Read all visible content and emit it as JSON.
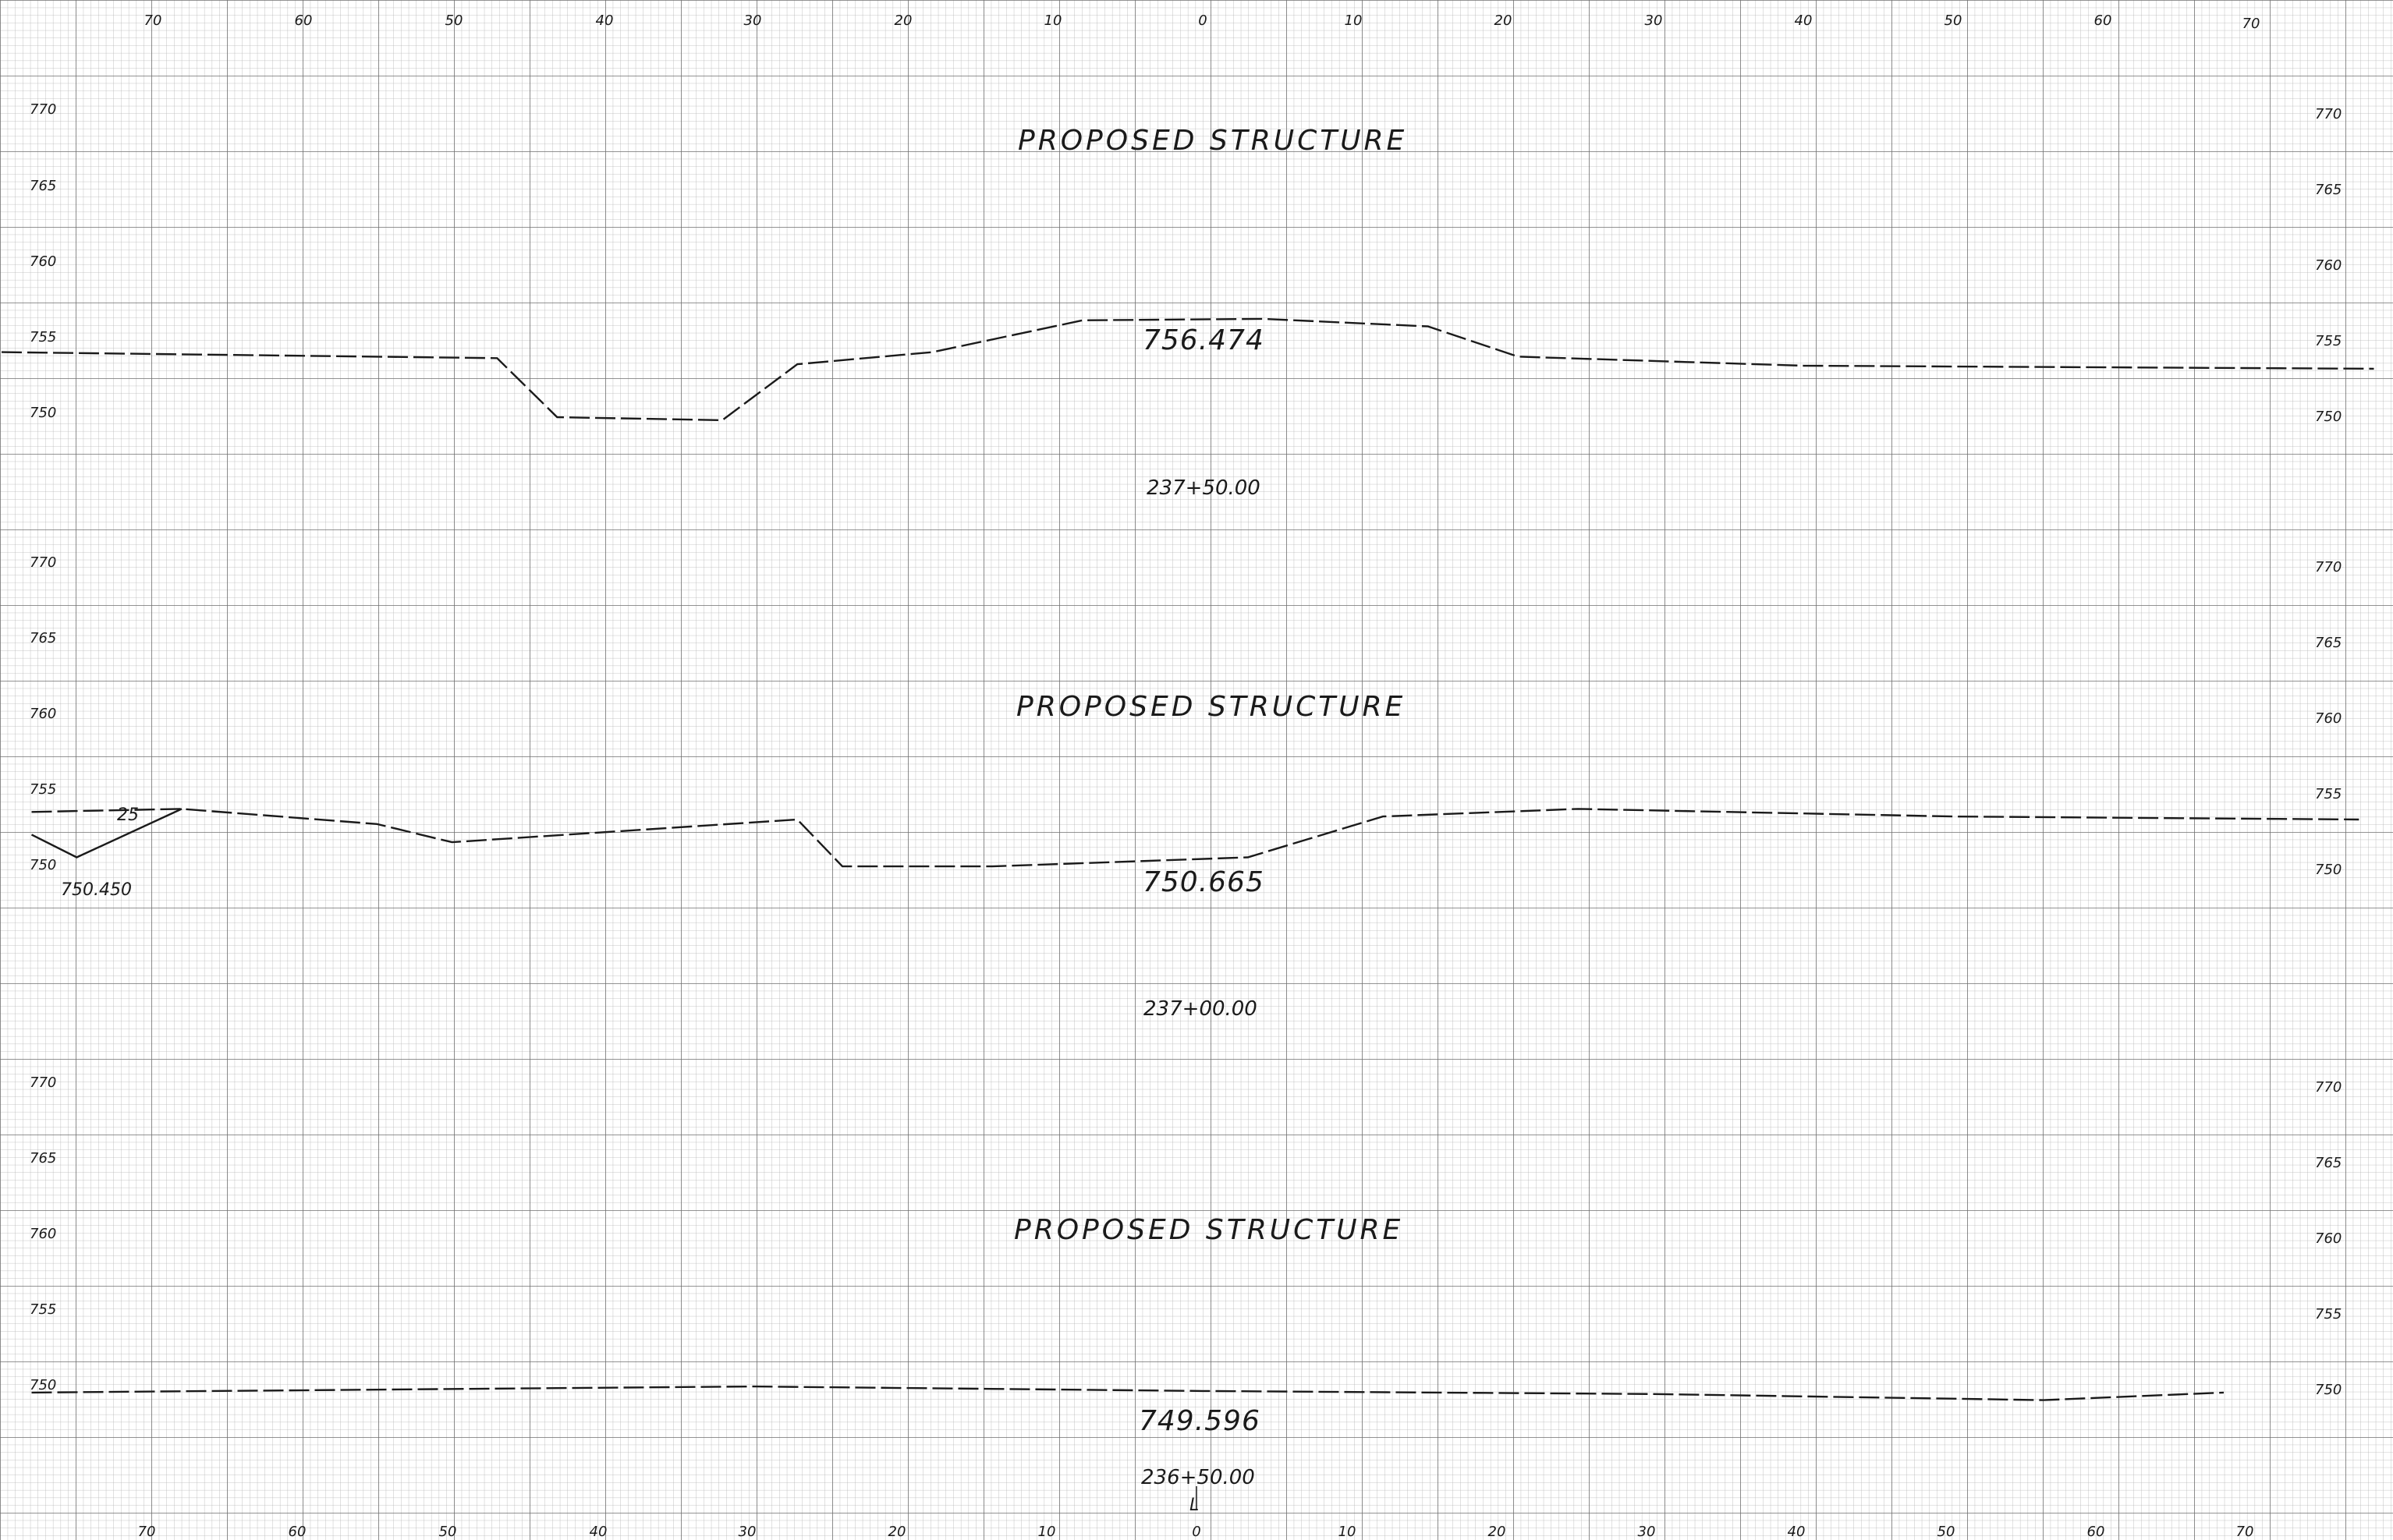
{
  "sheet": {
    "grid_color": "#9a9a9a",
    "line_color": "#1a1a1a",
    "background": "#ffffff"
  },
  "offset_axis": {
    "left_labels": [
      "70",
      "60",
      "50",
      "40",
      "30",
      "20",
      "10"
    ],
    "center_label": "0",
    "right_labels": [
      "10",
      "20",
      "30",
      "40",
      "50",
      "60",
      "70"
    ]
  },
  "sections": [
    {
      "name": "section-237-150",
      "title": "PROPOSED STRUCTURE",
      "station": "237+50.00",
      "elevation_label": "756.474",
      "elevation_ticks": [
        "770",
        "765",
        "760",
        "755",
        "750"
      ],
      "ground_profile": [
        [
          -80,
          754.3
        ],
        [
          -47,
          753.9
        ],
        [
          -43,
          750.0
        ],
        [
          -32,
          749.8
        ],
        [
          -27,
          753.5
        ],
        [
          -18,
          754.3
        ],
        [
          -8,
          756.4
        ],
        [
          4,
          756.5
        ],
        [
          15,
          756.0
        ],
        [
          21,
          754.0
        ],
        [
          40,
          753.4
        ],
        [
          78,
          753.2
        ]
      ]
    },
    {
      "name": "section-237-100",
      "title": "PROPOSED STRUCTURE",
      "station": "237+00.00",
      "elevation_label": "750.665",
      "side_label": "750.450",
      "side_mark": "25",
      "elevation_ticks": [
        "770",
        "765",
        "760",
        "755",
        "750"
      ],
      "ground_profile": [
        [
          -78,
          753.8
        ],
        [
          -68,
          754.0
        ],
        [
          -55,
          753.0
        ],
        [
          -50,
          751.8
        ],
        [
          -27,
          753.3
        ],
        [
          -24,
          750.2
        ],
        [
          -14,
          750.2
        ],
        [
          3,
          750.8
        ],
        [
          12,
          753.5
        ],
        [
          25,
          754.0
        ],
        [
          50,
          753.5
        ],
        [
          77,
          753.3
        ]
      ],
      "side_profile": [
        [
          -78,
          752.3
        ],
        [
          -75,
          750.8
        ],
        [
          -68,
          754.0
        ]
      ]
    },
    {
      "name": "section-236-150",
      "title": "PROPOSED STRUCTURE",
      "station": "236+50.00",
      "elevation_label": "749.596",
      "centerline_mark": "L",
      "elevation_ticks": [
        "770",
        "765",
        "760",
        "755",
        "750"
      ],
      "ground_profile": [
        [
          -78,
          749.8
        ],
        [
          -30,
          750.2
        ],
        [
          0,
          749.9
        ],
        [
          30,
          749.7
        ],
        [
          56,
          749.3
        ],
        [
          68,
          749.8
        ]
      ]
    }
  ]
}
